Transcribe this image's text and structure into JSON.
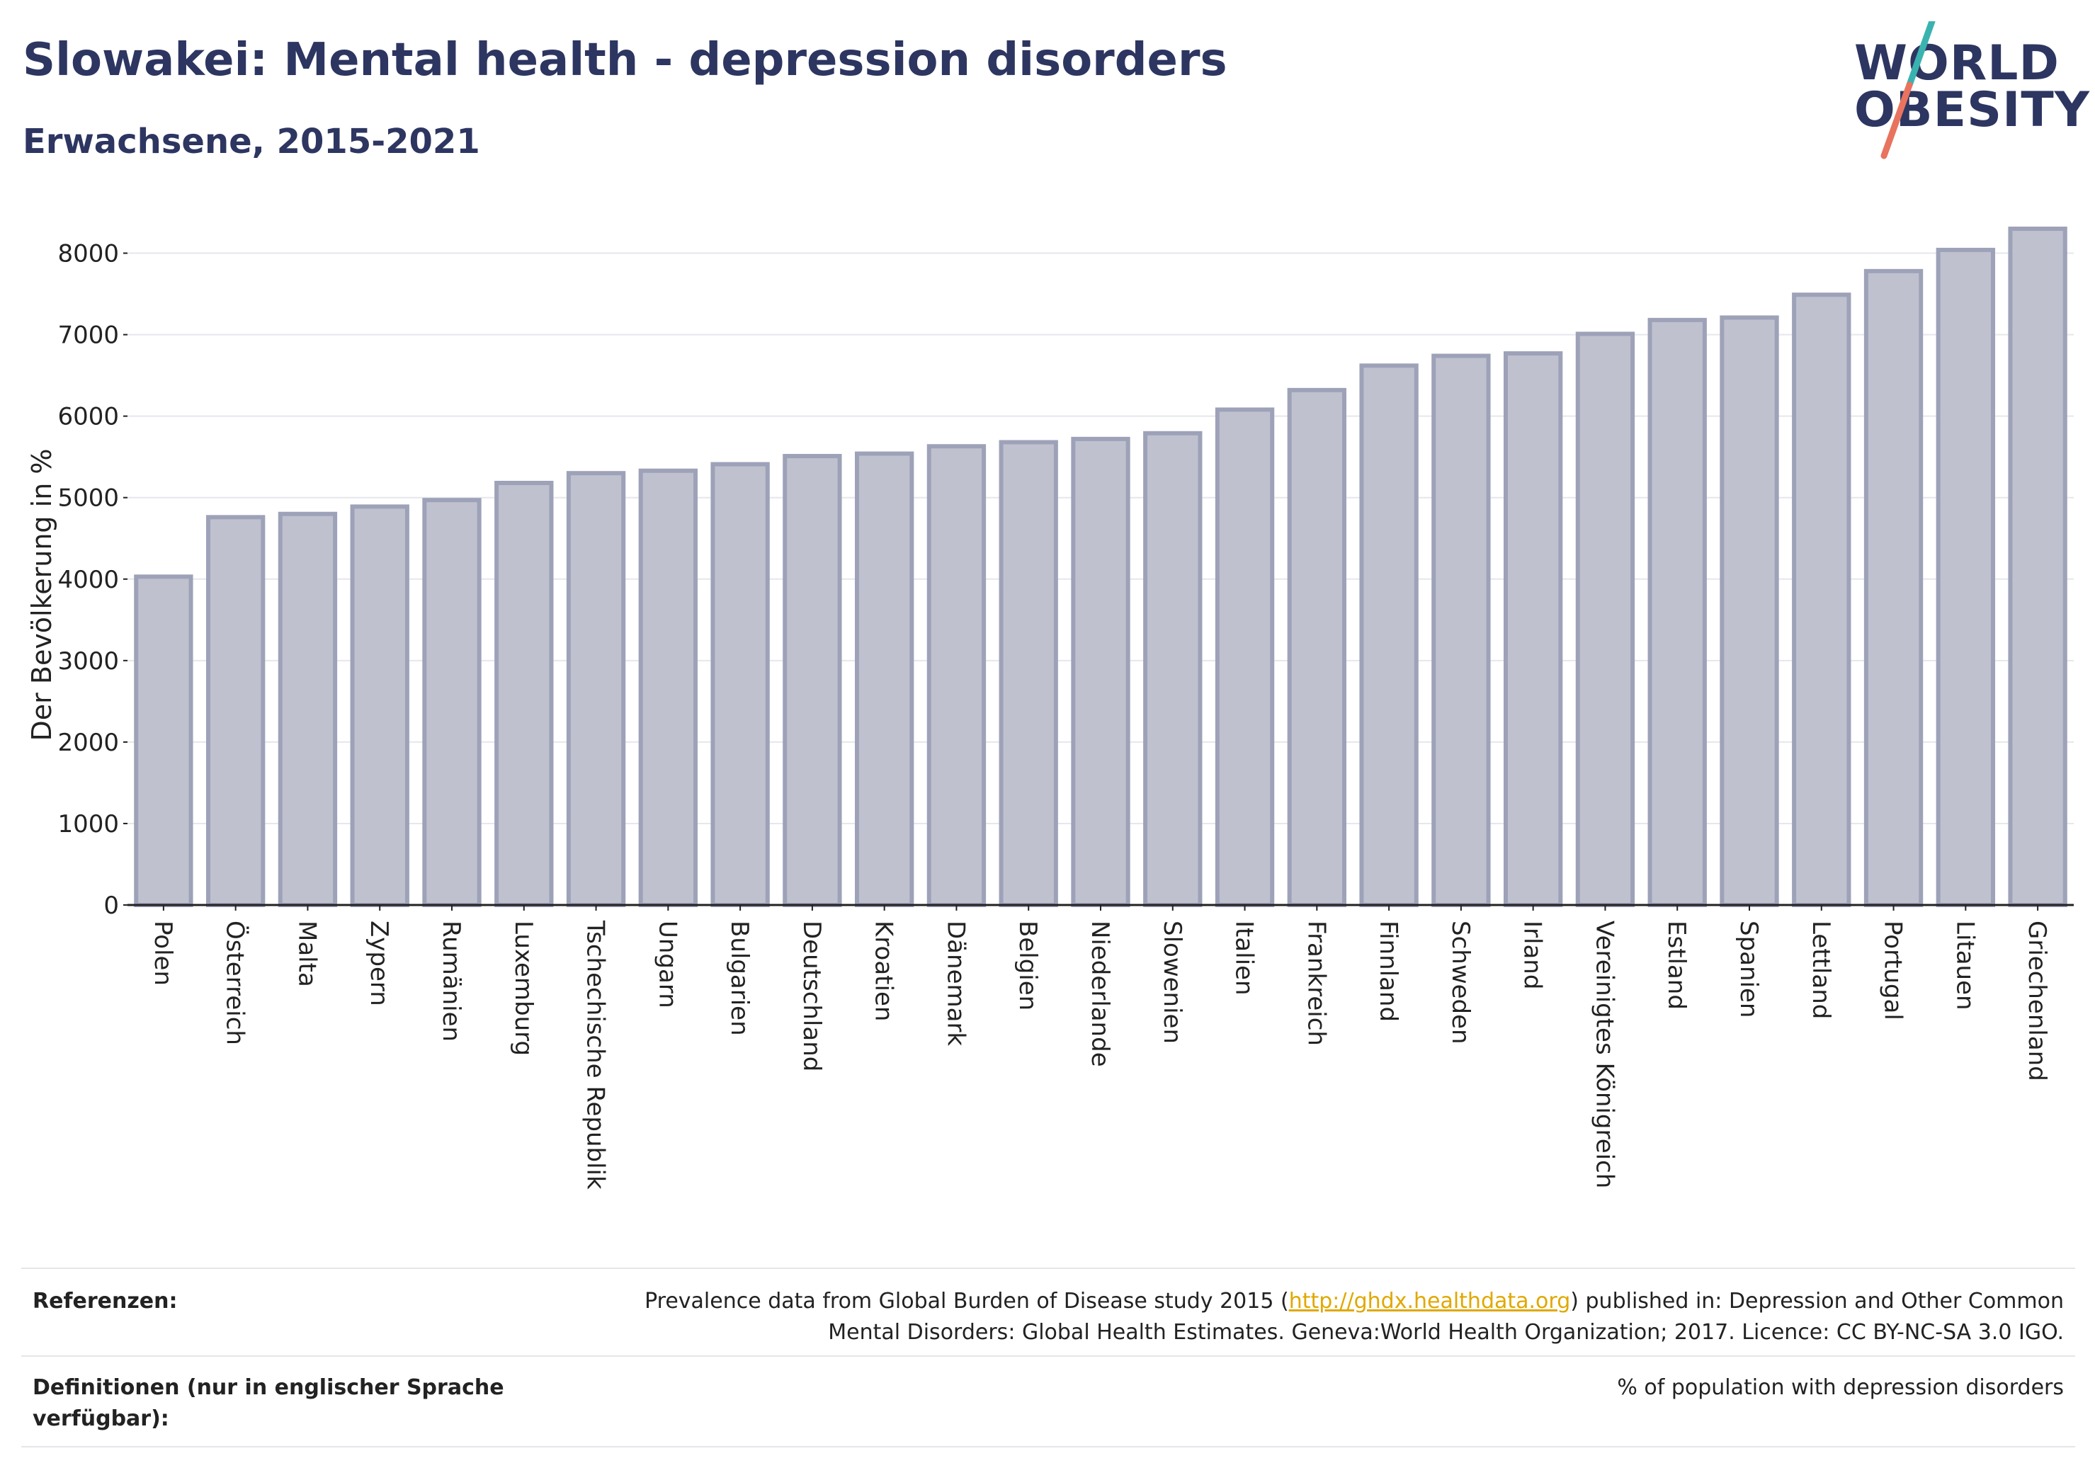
{
  "header": {
    "title": "Slowakei: Mental health - depression disorders",
    "subtitle": "Erwachsene, 2015-2021"
  },
  "logo": {
    "line1": "WORLD",
    "line2": "OBESITY",
    "colors": {
      "text": "#2d3561",
      "slash_top": "#3ab3b0",
      "slash_bottom": "#e8735f"
    }
  },
  "chart_data": {
    "type": "bar",
    "ylabel": "Der Bevölkerung in %",
    "xlabel": "",
    "ylim": [
      0,
      8500
    ],
    "yticks": [
      0,
      1000,
      2000,
      3000,
      4000,
      5000,
      6000,
      7000,
      8000
    ],
    "grid": true,
    "categories": [
      "Polen",
      "Österreich",
      "Malta",
      "Zypern",
      "Rumänien",
      "Luxemburg",
      "Tschechische Republik",
      "Ungarn",
      "Bulgarien",
      "Deutschland",
      "Kroatien",
      "Dänemark",
      "Belgien",
      "Niederlande",
      "Slowenien",
      "Italien",
      "Frankreich",
      "Finnland",
      "Schweden",
      "Irland",
      "Vereinigtes Königreich",
      "Estland",
      "Spanien",
      "Lettland",
      "Portugal",
      "Litauen",
      "Griechenland"
    ],
    "values": [
      4030,
      4760,
      4800,
      4890,
      4970,
      5180,
      5300,
      5330,
      5410,
      5510,
      5540,
      5630,
      5680,
      5720,
      5790,
      6080,
      6320,
      6620,
      6740,
      6770,
      7010,
      7180,
      7210,
      7490,
      7780,
      8040,
      8300
    ],
    "colors": {
      "bar_fill": "#bfc1cf",
      "bar_stroke": "#9ea2b8",
      "grid": "#e6e7ee",
      "axis": "#222222"
    }
  },
  "footer": {
    "references_label": "Referenzen:",
    "references_text_1": "Prevalence data from Global Burden of Disease study 2015 (",
    "references_link": "http://ghdx.healthdata.org",
    "references_text_2": ") published in: Depression and Other Common",
    "references_text_3": "Mental Disorders: Global Health Estimates. Geneva:World Health Organization; 2017. Licence: CC BY-NC-SA 3.0 IGO.",
    "definitions_label_1": "Definitionen (nur in englischer Sprache",
    "definitions_label_2": "verfügbar):",
    "definitions_text": "% of population with depression disorders"
  }
}
